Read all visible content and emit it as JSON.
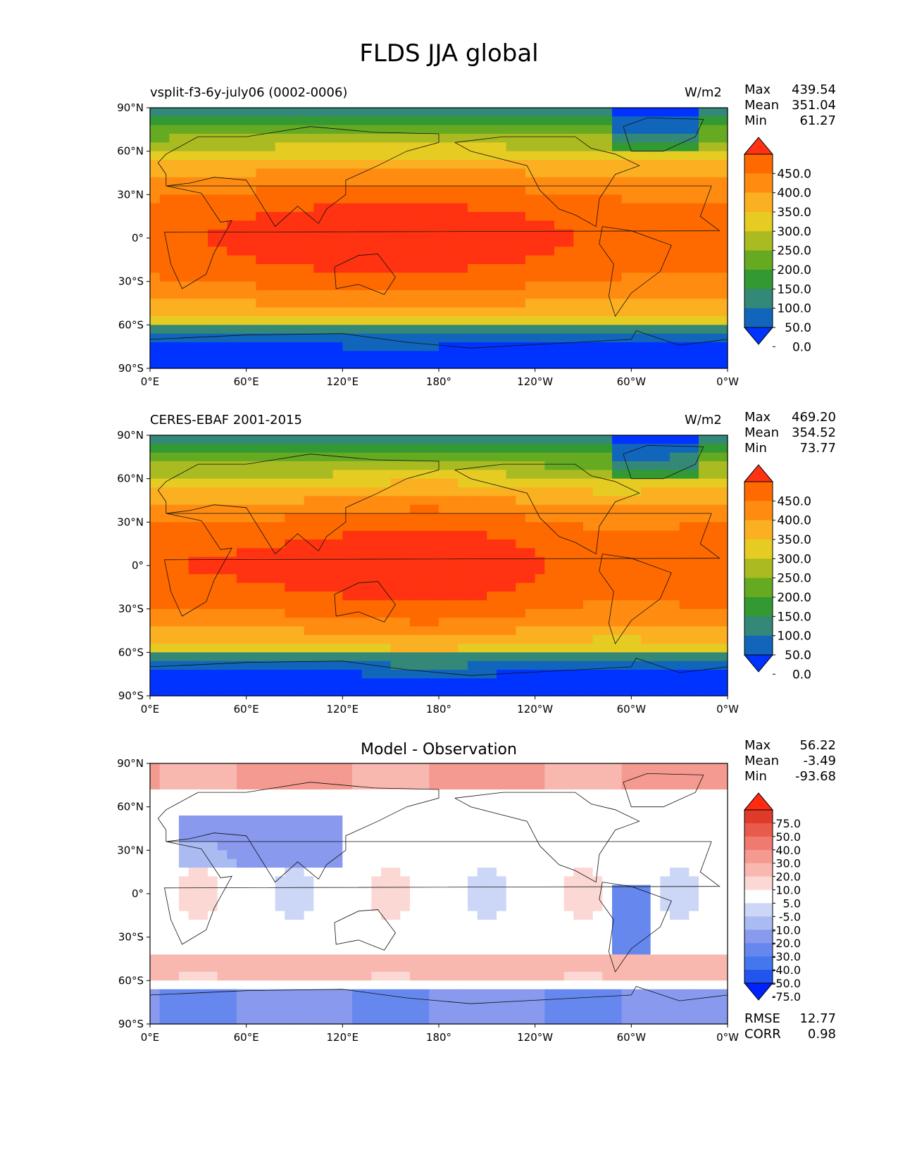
{
  "title": "FLDS JJA global",
  "lat_ticks": [
    "90°N",
    "60°N",
    "30°N",
    "0°",
    "30°S",
    "60°S",
    "90°S"
  ],
  "lon_ticks": [
    "0°E",
    "60°E",
    "120°E",
    "180°",
    "120°W",
    "60°W",
    "0°W"
  ],
  "colors": {
    "abs_levels": [
      "#0033ff",
      "#1166bb",
      "#338877",
      "#339933",
      "#66aa22",
      "#aabb22",
      "#e6cc22",
      "#fbb022",
      "#ff8c11",
      "#ff6a00",
      "#ff3311"
    ],
    "diff_levels": [
      "#0022ff",
      "#2255ee",
      "#4477ee",
      "#6688ee",
      "#8899ee",
      "#aabbf2",
      "#ccd6f6",
      "#ffffff",
      "#fbd8d4",
      "#f8b8b0",
      "#f59a90",
      "#f07a70",
      "#e85a4a",
      "#e03a2a",
      "#ff2a10"
    ]
  },
  "chart_data": [
    {
      "type": "heatmap",
      "name": "model",
      "subtitle": "vsplit-f3-6y-july06 (0002-0006)",
      "units": "W/m2",
      "stats": {
        "max_label": "Max",
        "max": "439.54",
        "mean_label": "Mean",
        "mean": "351.04",
        "min_label": "Min",
        "min": "61.27"
      },
      "colorbar_levels": [
        "450.0",
        "400.0",
        "350.0",
        "300.0",
        "250.0",
        "200.0",
        "150.0",
        "100.0",
        "50.0",
        "0.0"
      ],
      "xlim": [
        0,
        360
      ],
      "ylim": [
        -90,
        90
      ]
    },
    {
      "type": "heatmap",
      "name": "observation",
      "subtitle": "CERES-EBAF 2001-2015",
      "units": "W/m2",
      "stats": {
        "max_label": "Max",
        "max": "469.20",
        "mean_label": "Mean",
        "mean": "354.52",
        "min_label": "Min",
        "min": "73.77"
      },
      "colorbar_levels": [
        "450.0",
        "400.0",
        "350.0",
        "300.0",
        "250.0",
        "200.0",
        "150.0",
        "100.0",
        "50.0",
        "0.0"
      ],
      "xlim": [
        0,
        360
      ],
      "ylim": [
        -90,
        90
      ]
    },
    {
      "type": "heatmap",
      "name": "difference",
      "subtitle": "Model - Observation",
      "units": "",
      "stats": {
        "max_label": "Max",
        "max": "56.22",
        "mean_label": "Mean",
        "mean": "-3.49",
        "min_label": "Min",
        "min": "-93.68"
      },
      "colorbar_levels": [
        "75.0",
        "50.0",
        "40.0",
        "30.0",
        "20.0",
        "10.0",
        "5.0",
        "-5.0",
        "-10.0",
        "-20.0",
        "-30.0",
        "-40.0",
        "-50.0",
        "-75.0"
      ],
      "extra_stats": {
        "rmse_label": "RMSE",
        "rmse": "12.77",
        "corr_label": "CORR",
        "corr": "0.98"
      },
      "xlim": [
        0,
        360
      ],
      "ylim": [
        -90,
        90
      ]
    }
  ]
}
